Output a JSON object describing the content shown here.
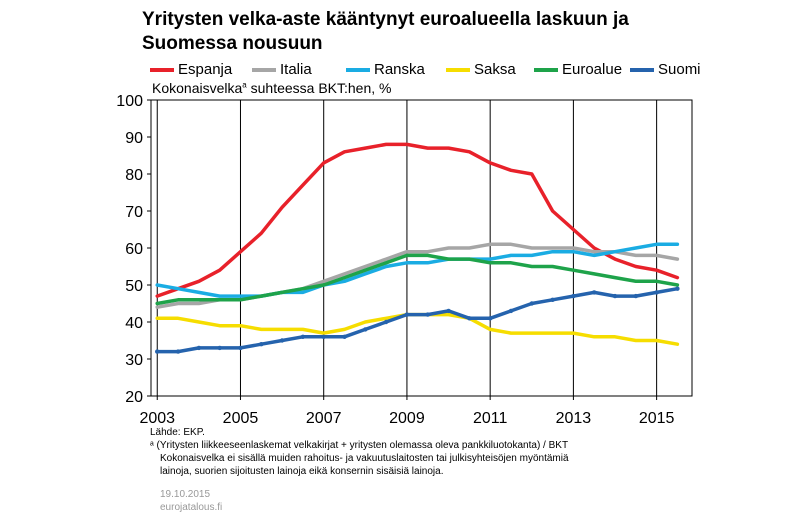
{
  "chart_data": {
    "type": "line",
    "title": "Yritysten velka-aste kääntynyt euroalueella laskuun ja Suomessa nousuun",
    "ylabel": "Kokonaisvelka",
    "ylabel_sup": "a",
    "ylabel_rest": " suhteessa BKT:hen, %",
    "xlim": [
      2002.85,
      2015.85
    ],
    "ylim": [
      20,
      100
    ],
    "y_ticks": [
      "20",
      "30",
      "40",
      "50",
      "60",
      "70",
      "80",
      "90",
      "100"
    ],
    "x_tick_labels": [
      "2003",
      "2005",
      "2007",
      "2009",
      "2011",
      "2013",
      "2015"
    ],
    "x_tick_positions": [
      2003,
      2005,
      2007,
      2009,
      2011,
      2013,
      2015
    ],
    "grid": "vertical",
    "legend_position": "top",
    "series": [
      {
        "name": "Espanja",
        "color": "#e8212a",
        "x": [
          2003,
          2003.5,
          2004,
          2004.5,
          2005,
          2005.5,
          2006,
          2006.5,
          2007,
          2007.5,
          2008,
          2008.5,
          2009,
          2009.5,
          2010,
          2010.5,
          2011,
          2011.5,
          2012,
          2012.5,
          2013,
          2013.5,
          2014,
          2014.5,
          2015,
          2015.5
        ],
        "y": [
          47,
          49,
          51,
          54,
          59,
          64,
          71,
          77,
          83,
          86,
          87,
          88,
          88,
          87,
          87,
          86,
          83,
          81,
          80,
          70,
          65,
          60,
          57,
          55,
          54,
          52
        ]
      },
      {
        "name": "Italia",
        "color": "#a6a6a6",
        "x": [
          2003,
          2003.5,
          2004,
          2004.5,
          2005,
          2005.5,
          2006,
          2006.5,
          2007,
          2007.5,
          2008,
          2008.5,
          2009,
          2009.5,
          2010,
          2010.5,
          2011,
          2011.5,
          2012,
          2012.5,
          2013,
          2013.5,
          2014,
          2014.5,
          2015,
          2015.5
        ],
        "y": [
          44,
          45,
          45,
          46,
          46,
          47,
          48,
          49,
          51,
          53,
          55,
          57,
          59,
          59,
          60,
          60,
          61,
          61,
          60,
          60,
          60,
          59,
          59,
          58,
          58,
          57
        ]
      },
      {
        "name": "Ranska",
        "color": "#1aace3",
        "x": [
          2003,
          2003.5,
          2004,
          2004.5,
          2005,
          2005.5,
          2006,
          2006.5,
          2007,
          2007.5,
          2008,
          2008.5,
          2009,
          2009.5,
          2010,
          2010.5,
          2011,
          2011.5,
          2012,
          2012.5,
          2013,
          2013.5,
          2014,
          2014.5,
          2015,
          2015.5
        ],
        "y": [
          50,
          49,
          48,
          47,
          47,
          47,
          48,
          48,
          50,
          51,
          53,
          55,
          56,
          56,
          57,
          57,
          57,
          58,
          58,
          59,
          59,
          58,
          59,
          60,
          61,
          61
        ]
      },
      {
        "name": "Saksa",
        "color": "#f6dd00",
        "x": [
          2003,
          2003.5,
          2004,
          2004.5,
          2005,
          2005.5,
          2006,
          2006.5,
          2007,
          2007.5,
          2008,
          2008.5,
          2009,
          2009.5,
          2010,
          2010.5,
          2011,
          2011.5,
          2012,
          2012.5,
          2013,
          2013.5,
          2014,
          2014.5,
          2015,
          2015.5
        ],
        "y": [
          41,
          41,
          40,
          39,
          39,
          38,
          38,
          38,
          37,
          38,
          40,
          41,
          42,
          42,
          42,
          41,
          38,
          37,
          37,
          37,
          37,
          36,
          36,
          35,
          35,
          34
        ]
      },
      {
        "name": "Euroalue",
        "color": "#1ea34a",
        "x": [
          2003,
          2003.5,
          2004,
          2004.5,
          2005,
          2005.5,
          2006,
          2006.5,
          2007,
          2007.5,
          2008,
          2008.5,
          2009,
          2009.5,
          2010,
          2010.5,
          2011,
          2011.5,
          2012,
          2012.5,
          2013,
          2013.5,
          2014,
          2014.5,
          2015,
          2015.5
        ],
        "y": [
          45,
          46,
          46,
          46,
          46,
          47,
          48,
          49,
          50,
          52,
          54,
          56,
          58,
          58,
          57,
          57,
          56,
          56,
          55,
          55,
          54,
          53,
          52,
          51,
          51,
          50
        ]
      },
      {
        "name": "Suomi",
        "color": "#2563ad",
        "x": [
          2003,
          2003.5,
          2004,
          2004.5,
          2005,
          2005.5,
          2006,
          2006.5,
          2007,
          2007.5,
          2008,
          2008.5,
          2009,
          2009.5,
          2010,
          2010.5,
          2011,
          2011.5,
          2012,
          2012.5,
          2013,
          2013.5,
          2014,
          2014.5,
          2015,
          2015.5
        ],
        "y": [
          32,
          32,
          33,
          33,
          33,
          34,
          35,
          36,
          36,
          36,
          38,
          40,
          42,
          42,
          43,
          41,
          41,
          43,
          45,
          46,
          47,
          48,
          47,
          47,
          48,
          49
        ]
      }
    ]
  },
  "notes": {
    "source": "Lähde: EKP.",
    "footnote_line1": "ᵃ (Yritysten liikkeeseenlaskemat velkakirjat + yritysten olemassa oleva pankkiluotokanta)  / BKT",
    "footnote_line2": "Kokonaisvelka ei sisällä muiden rahoitus- ja vakuutuslaitosten tai julkisyhteisöjen myöntämiä",
    "footnote_line3": "lainoja, suorien sijoitusten lainoja eikä konsernin sisäisiä lainoja."
  },
  "date": "19.10.2015",
  "source_site": "eurojatalous.fi"
}
